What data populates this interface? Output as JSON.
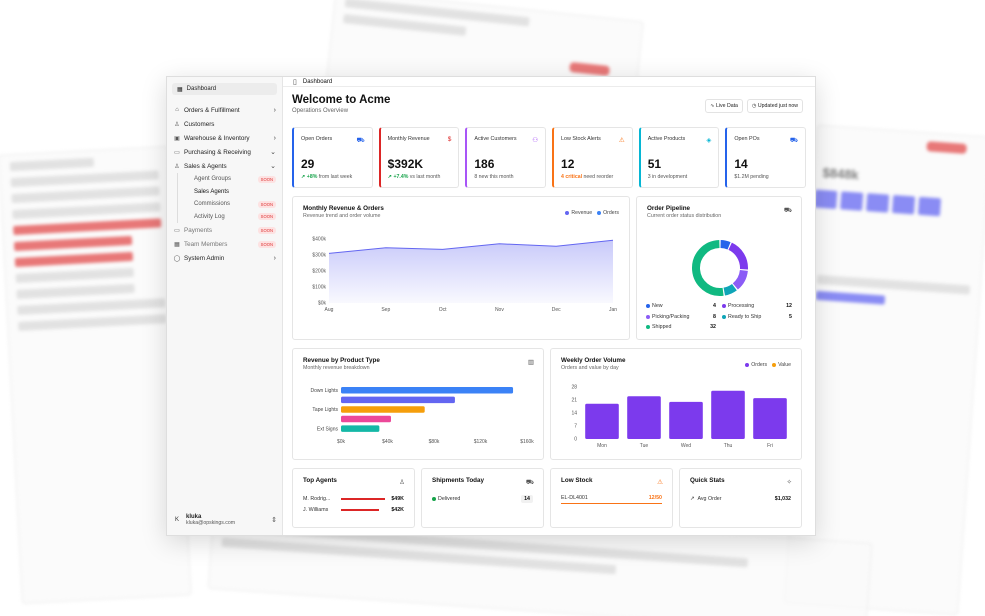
{
  "sidebar": {
    "header": "Dashboard",
    "items": [
      {
        "icon": "cart-icon",
        "label": "Orders & Fulfillment",
        "chev": "›"
      },
      {
        "icon": "users-icon",
        "label": "Customers",
        "chev": ""
      },
      {
        "icon": "warehouse-icon",
        "label": "Warehouse & Inventory",
        "chev": "›"
      },
      {
        "icon": "truck-icon",
        "label": "Purchasing & Receiving",
        "chev": "⌄"
      },
      {
        "icon": "agents-icon",
        "label": "Sales & Agents",
        "chev": "⌄"
      }
    ],
    "sub_items": [
      {
        "label": "Agent Groups",
        "badge": "SOON"
      },
      {
        "label": "Sales Agents",
        "badge": ""
      },
      {
        "label": "Commissions",
        "badge": "SOON"
      },
      {
        "label": "Activity Log",
        "badge": "SOON"
      }
    ],
    "bottom_items": [
      {
        "label": "Payments",
        "badge": "SOON"
      },
      {
        "label": "Team Members",
        "badge": "SOON"
      },
      {
        "label": "System Admin",
        "chev": "›"
      }
    ],
    "user": {
      "initial": "K",
      "name": "kluka",
      "email": "kluka@opskings.com"
    }
  },
  "topbar": {
    "title": "Dashboard"
  },
  "page": {
    "title": "Welcome to Acme",
    "subtitle": "Operations Overview",
    "live": "Live Data",
    "updated": "Updated just now"
  },
  "kpis": [
    {
      "label": "Open Orders",
      "value": "29",
      "note_hl": "↗ +8%",
      "note": " from last week",
      "color": "#2563eb",
      "hl_color": "#16a34a",
      "icon": "cart-icon",
      "glyph": "🛒"
    },
    {
      "label": "Monthly Revenue",
      "value": "$392K",
      "note_hl": "↗ +7.4%",
      "note": " vs last month",
      "color": "#dc2626",
      "hl_color": "#16a34a",
      "icon": "dollar-icon",
      "glyph": "$"
    },
    {
      "label": "Active Customers",
      "value": "186",
      "note_hl": "",
      "note": "8 new this month",
      "color": "#a855f7",
      "hl_color": "#16a34a",
      "icon": "users-icon",
      "glyph": "👥"
    },
    {
      "label": "Low Stock Alerts",
      "value": "12",
      "note_hl": "4 critical",
      "note": " need reorder",
      "color": "#f97316",
      "hl_color": "#f97316",
      "icon": "warning-icon",
      "glyph": "⚠"
    },
    {
      "label": "Active Products",
      "value": "51",
      "note_hl": "",
      "note": "3 in development",
      "color": "#06b6d4",
      "hl_color": "#16a34a",
      "icon": "box-icon",
      "glyph": "◈"
    },
    {
      "label": "Open POs",
      "value": "14",
      "note_hl": "",
      "note": "$1.2M pending",
      "color": "#2563eb",
      "hl_color": "#16a34a",
      "icon": "truck-icon",
      "glyph": "🚚"
    }
  ],
  "revenue_chart": {
    "title": "Monthly Revenue & Orders",
    "subtitle": "Revenue trend and order volume",
    "legend": [
      "Revenue",
      "Orders"
    ]
  },
  "pipeline": {
    "title": "Order Pipeline",
    "subtitle": "Current order status distribution",
    "items": [
      {
        "label": "New",
        "value": "4",
        "color": "#2563eb"
      },
      {
        "label": "Processing",
        "value": "12",
        "color": "#7c3aed"
      },
      {
        "label": "Picking/Packing",
        "value": "8",
        "color": "#8b5cf6"
      },
      {
        "label": "Ready to Ship",
        "value": "5",
        "color": "#0ea5b7"
      },
      {
        "label": "Shipped",
        "value": "32",
        "color": "#10b981"
      }
    ]
  },
  "product_chart": {
    "title": "Revenue by Product Type",
    "subtitle": "Monthly revenue breakdown"
  },
  "weekly_chart": {
    "title": "Weekly Order Volume",
    "subtitle": "Orders and value by day",
    "legend": [
      "Orders",
      "Value"
    ]
  },
  "bottom": {
    "top_agents": {
      "title": "Top Agents",
      "rows": [
        {
          "name": "M. Rodrig...",
          "value": "$49K"
        },
        {
          "name": "J. Williams",
          "value": "$42K"
        }
      ]
    },
    "shipments": {
      "title": "Shipments Today",
      "rows": [
        {
          "label": "Delivered",
          "value": "14"
        }
      ]
    },
    "low_stock": {
      "title": "Low Stock",
      "rows": [
        {
          "sku": "EL-DL4001",
          "value": "12/50"
        }
      ]
    },
    "quick_stats": {
      "title": "Quick Stats",
      "rows": [
        {
          "label": "Avg Order",
          "value": "$1,032"
        }
      ]
    }
  },
  "chart_data": [
    {
      "type": "area",
      "categories": [
        "Aug",
        "Sep",
        "Oct",
        "Nov",
        "Dec",
        "Jan"
      ],
      "series": [
        {
          "name": "Revenue",
          "values": [
            310000,
            345000,
            335000,
            370000,
            355000,
            392000
          ]
        }
      ],
      "yticks": [
        "$0k",
        "$100k",
        "$200k",
        "$300k",
        "$400k"
      ],
      "ylim": [
        0,
        400000
      ],
      "legend": "top-right",
      "colors": [
        "#6366f1",
        "#3b82f6"
      ]
    },
    {
      "type": "pie",
      "categories": [
        "New",
        "Processing",
        "Picking/Packing",
        "Ready to Ship",
        "Shipped"
      ],
      "values": [
        4,
        12,
        8,
        5,
        32
      ]
    },
    {
      "type": "bar",
      "orientation": "horizontal",
      "categories": [
        "Down Lights",
        "",
        "Tape Lights",
        "",
        "Ext Signs"
      ],
      "values": [
        148,
        98,
        72,
        43,
        33
      ],
      "colors": [
        "#3b82f6",
        "#6366f1",
        "#f59e0b",
        "#ec4899",
        "#14b8a6"
      ],
      "xticks": [
        "$0k",
        "$40k",
        "$80k",
        "$120k",
        "$160k"
      ],
      "xlim": [
        0,
        160
      ]
    },
    {
      "type": "bar",
      "categories": [
        "Mon",
        "Tue",
        "Wed",
        "Thu",
        "Fri"
      ],
      "series": [
        {
          "name": "Orders",
          "values": [
            19,
            23,
            20,
            26,
            22
          ]
        }
      ],
      "yticks": [
        "0",
        "7",
        "14",
        "21",
        "28"
      ],
      "ylim": [
        0,
        28
      ],
      "legend": "top-right",
      "colors": [
        "#7c3aed",
        "#f59e0b"
      ]
    }
  ]
}
